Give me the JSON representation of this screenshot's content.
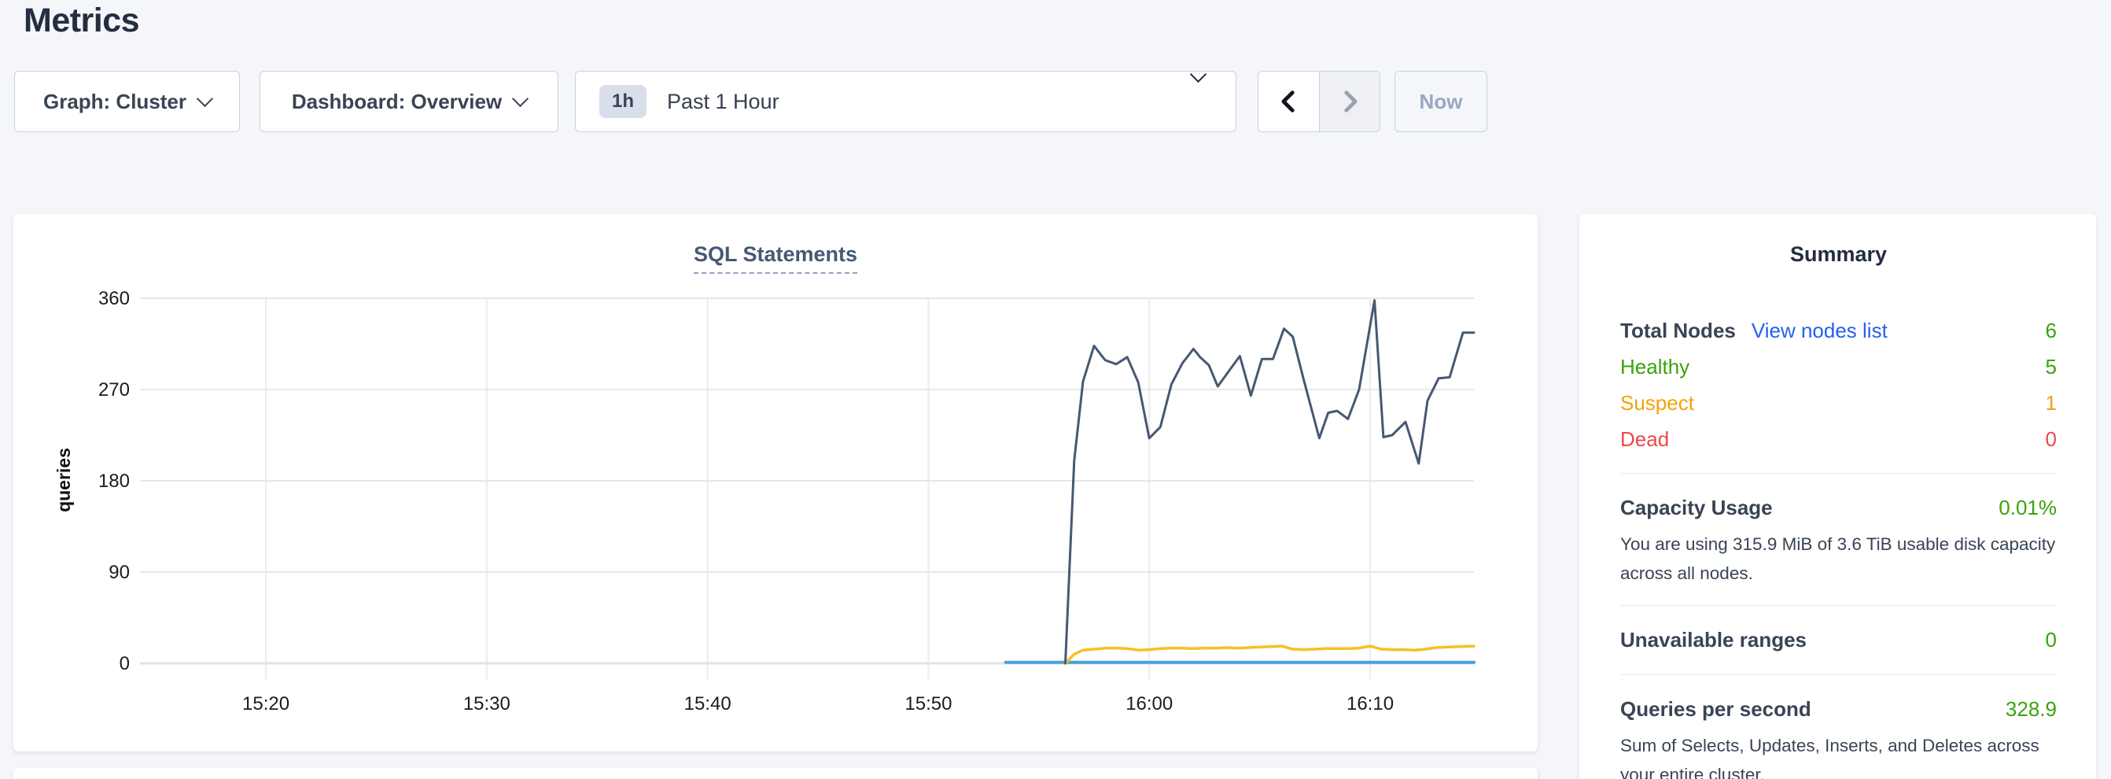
{
  "page": {
    "title": "Metrics"
  },
  "toolbar": {
    "graph_label": "Graph: Cluster",
    "dashboard_label": "Dashboard: Overview",
    "time_badge": "1h",
    "time_label": "Past 1 Hour",
    "now_label": "Now"
  },
  "chart_data": {
    "type": "line",
    "title": "SQL Statements",
    "ylabel": "queries",
    "xlabel": "",
    "ylim": [
      0,
      360
    ],
    "yticks": [
      0,
      90,
      180,
      270,
      360
    ],
    "xticks": [
      {
        "t": 20,
        "label": "15:20"
      },
      {
        "t": 30,
        "label": "15:30"
      },
      {
        "t": 40,
        "label": "15:40"
      },
      {
        "t": 50,
        "label": "15:50"
      },
      {
        "t": 60,
        "label": "16:00"
      },
      {
        "t": 70,
        "label": "16:10"
      }
    ],
    "x_unit": "minutes after 15:00",
    "x_axis_range": [
      14.3,
      74.7
    ],
    "grid": true,
    "legend": "none",
    "series": [
      {
        "name": "navy-series",
        "color": "#475872",
        "width": 3,
        "points": [
          [
            56.2,
            0
          ],
          [
            56.6,
            200
          ],
          [
            57,
            278
          ],
          [
            57.5,
            313
          ],
          [
            58,
            299
          ],
          [
            58.5,
            295
          ],
          [
            59,
            302
          ],
          [
            59.5,
            277
          ],
          [
            60,
            222
          ],
          [
            60.5,
            233
          ],
          [
            61,
            275
          ],
          [
            61.5,
            296
          ],
          [
            62,
            310
          ],
          [
            62.3,
            302
          ],
          [
            62.7,
            294
          ],
          [
            63.1,
            273
          ],
          [
            63.6,
            288
          ],
          [
            64.1,
            303
          ],
          [
            64.6,
            264
          ],
          [
            65.1,
            300
          ],
          [
            65.6,
            300
          ],
          [
            66.1,
            330
          ],
          [
            66.5,
            322
          ],
          [
            67,
            279
          ],
          [
            67.7,
            222
          ],
          [
            68.1,
            247
          ],
          [
            68.5,
            249
          ],
          [
            69,
            241
          ],
          [
            69.5,
            270
          ],
          [
            70.2,
            358
          ],
          [
            70.6,
            223
          ],
          [
            71,
            225
          ],
          [
            71.6,
            238
          ],
          [
            72.2,
            197
          ],
          [
            72.6,
            259
          ],
          [
            73.1,
            281
          ],
          [
            73.6,
            282
          ],
          [
            74.2,
            326
          ],
          [
            74.7,
            326
          ]
        ]
      },
      {
        "name": "yellow-series",
        "color": "#f7bf27",
        "width": 3.5,
        "points": [
          [
            56.2,
            0
          ],
          [
            56.6,
            9
          ],
          [
            57,
            13
          ],
          [
            57.5,
            14
          ],
          [
            58,
            15
          ],
          [
            58.5,
            15
          ],
          [
            59,
            14.5
          ],
          [
            59.5,
            13
          ],
          [
            60,
            13.5
          ],
          [
            60.5,
            14.5
          ],
          [
            61,
            15
          ],
          [
            61.5,
            15
          ],
          [
            62,
            14.5
          ],
          [
            62.5,
            15
          ],
          [
            63,
            15
          ],
          [
            63.5,
            15.5
          ],
          [
            64,
            15
          ],
          [
            64.5,
            15.5
          ],
          [
            65,
            16
          ],
          [
            65.5,
            16.5
          ],
          [
            66,
            17
          ],
          [
            66.5,
            14
          ],
          [
            67,
            13.5
          ],
          [
            67.5,
            14
          ],
          [
            68,
            14.5
          ],
          [
            68.5,
            14.5
          ],
          [
            69,
            14.5
          ],
          [
            69.5,
            15
          ],
          [
            70,
            17
          ],
          [
            70.5,
            14
          ],
          [
            71,
            13.5
          ],
          [
            71.5,
            13.5
          ],
          [
            72,
            13
          ],
          [
            72.5,
            14
          ],
          [
            73,
            15.5
          ],
          [
            73.5,
            16
          ],
          [
            74,
            16.5
          ],
          [
            74.7,
            17
          ]
        ]
      },
      {
        "name": "blue-series",
        "color": "#4a9fd8",
        "width": 4,
        "points": [
          [
            53.5,
            1
          ],
          [
            74.7,
            1
          ]
        ]
      }
    ]
  },
  "summary": {
    "title": "Summary",
    "total_nodes": {
      "label": "Total Nodes",
      "link": "View nodes list",
      "value": "6"
    },
    "statuses": [
      {
        "label": "Healthy",
        "value": "5",
        "color": "#3aa30a"
      },
      {
        "label": "Suspect",
        "value": "1",
        "color": "#f7a109"
      },
      {
        "label": "Dead",
        "value": "0",
        "color": "#ef464a"
      }
    ],
    "capacity": {
      "label": "Capacity Usage",
      "value": "0.01%",
      "description": "You are using 315.9 MiB of 3.6 TiB usable disk capacity across all nodes."
    },
    "unavailable_ranges": {
      "label": "Unavailable ranges",
      "value": "0"
    },
    "qps": {
      "label": "Queries per second",
      "value": "328.9",
      "description": "Sum of Selects, Updates, Inserts, and Deletes across your entire cluster."
    }
  },
  "colors": {
    "green": "#3aa30a",
    "orange": "#f7a109",
    "red": "#ef464a",
    "link_blue": "#2161f0",
    "text_dark": "#394455",
    "navy_series": "#475872",
    "yellow_series": "#f7bf27",
    "blue_series": "#4a9fd8"
  }
}
